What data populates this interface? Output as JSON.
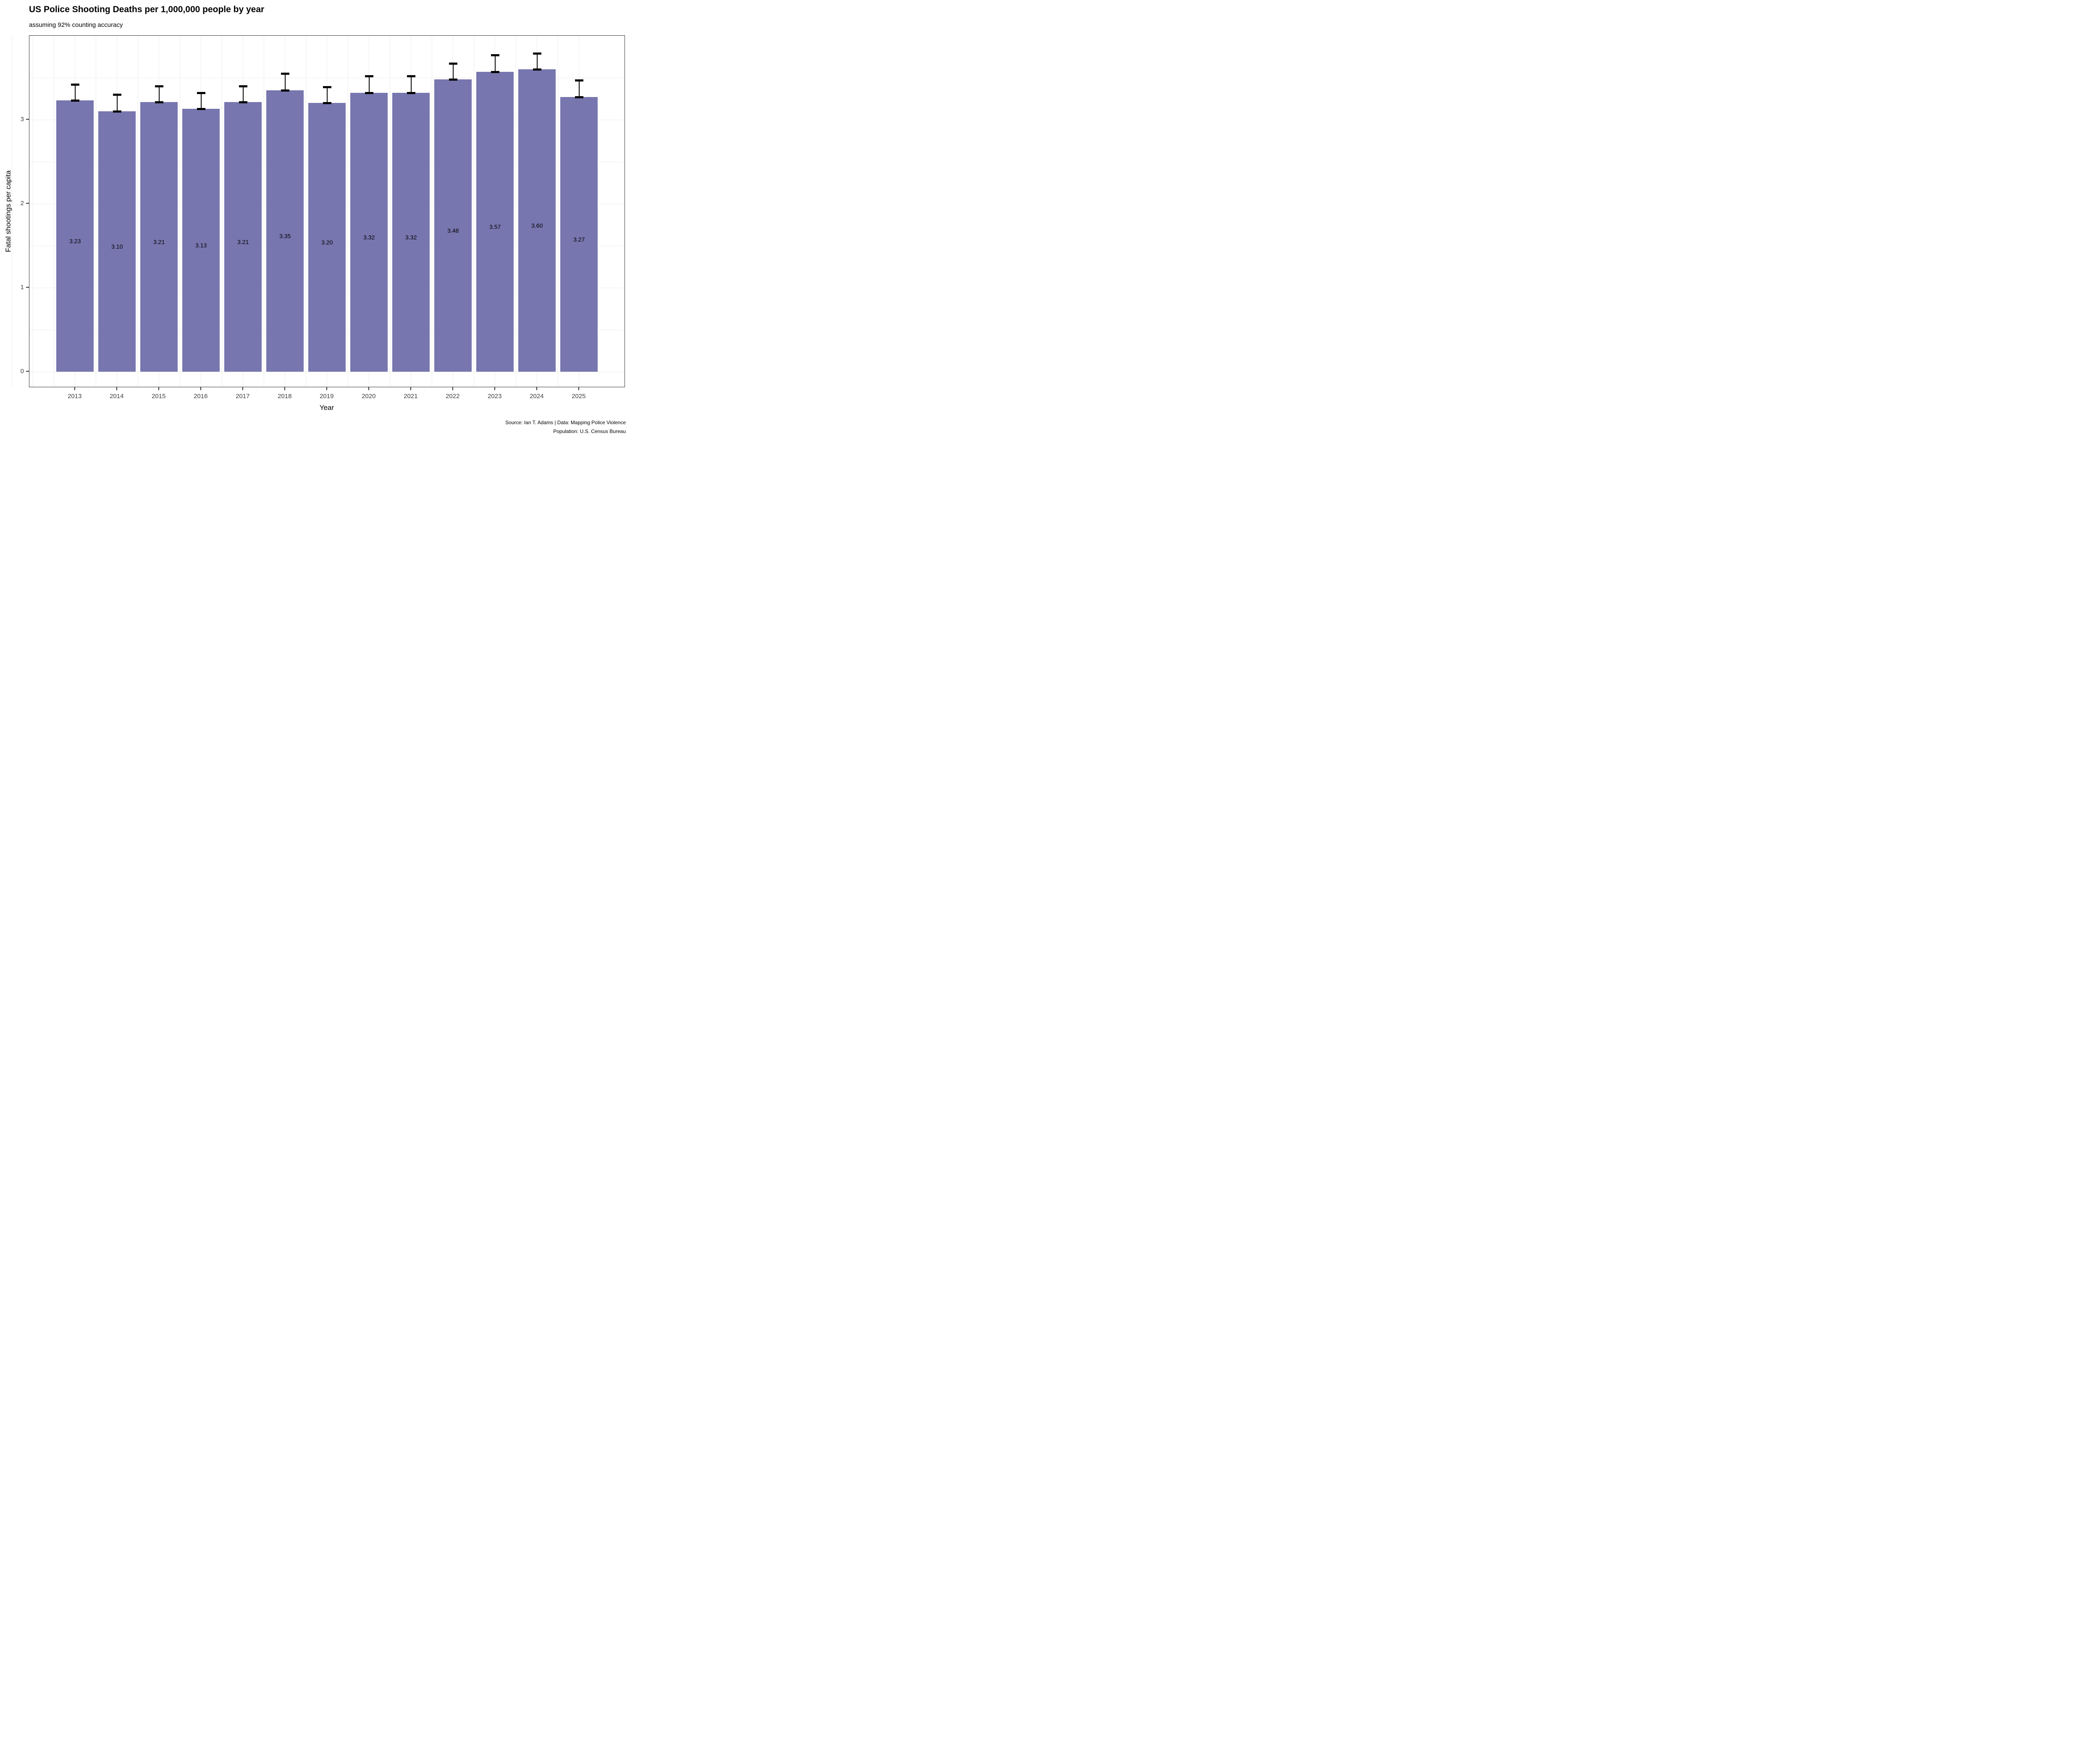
{
  "chart_data": {
    "type": "bar",
    "title": "US Police Shooting Deaths per 1,000,000 people by year",
    "subtitle": "assuming 92% counting accuracy",
    "xlabel": "Year",
    "ylabel": "Fatal shootings per capita",
    "caption": {
      "line1": "Source: Ian T. Adams | Data: Mapping Police Violence",
      "line2": "Population: U.S. Census Bureau"
    },
    "categories": [
      2013,
      2014,
      2015,
      2016,
      2017,
      2018,
      2019,
      2020,
      2021,
      2022,
      2023,
      2024,
      2025
    ],
    "values": [
      3.23,
      3.1,
      3.21,
      3.13,
      3.21,
      3.35,
      3.2,
      3.32,
      3.32,
      3.48,
      3.57,
      3.6,
      3.27
    ],
    "bar_labels": [
      "3.23",
      "3.10",
      "3.21",
      "3.13",
      "3.21",
      "3.35",
      "3.20",
      "3.32",
      "3.32",
      "3.48",
      "3.57",
      "3.60",
      "3.27"
    ],
    "upper_ci": [
      3.42,
      3.3,
      3.4,
      3.32,
      3.4,
      3.55,
      3.39,
      3.52,
      3.52,
      3.67,
      3.77,
      3.79,
      3.47
    ],
    "error_bar_lower": "at bar value",
    "y_ticks": [
      0,
      1,
      2,
      3
    ],
    "y_minor_breaks": [
      0.5,
      1.5,
      2.5,
      3.5
    ],
    "x_minor_half_years": true,
    "ylim": [
      -0.19,
      4.0
    ],
    "grid": "on",
    "legend": "none",
    "colors": {
      "bar": "#7776AF",
      "error_bar": "#000000",
      "grid": "#ECECEC",
      "panel_border": "#333333",
      "axis_tick": "#333333",
      "tick_label": "#404040",
      "text": "#000000",
      "background": "#FFFFFF"
    }
  }
}
